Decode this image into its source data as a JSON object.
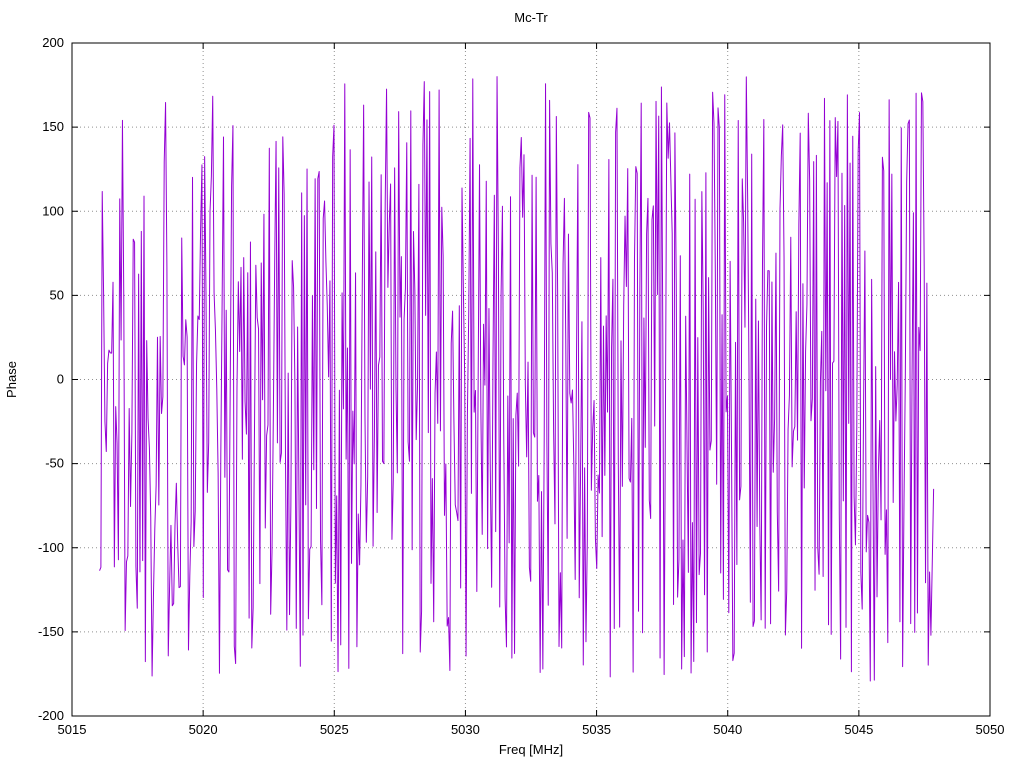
{
  "chart_data": {
    "type": "line",
    "title": "Mc-Tr",
    "xlabel": "Freq [MHz]",
    "ylabel": "Phase",
    "xlim": [
      5015,
      5050
    ],
    "ylim": [
      -200,
      200
    ],
    "x_ticks": [
      5015,
      5020,
      5025,
      5030,
      5035,
      5040,
      5045,
      5050
    ],
    "y_ticks": [
      -200,
      -150,
      -100,
      -50,
      0,
      50,
      100,
      150,
      200
    ],
    "grid": true,
    "grid_style": "dotted",
    "grid_color": "#909090",
    "border_color": "#000000",
    "background": "#ffffff",
    "legend_position": "none",
    "series": [
      {
        "name": "Mc-Tr",
        "color": "#9400d3",
        "description": "wrapped phase noise, uniformly distributed between -180 and 180 degrees",
        "x_start": 5016.05,
        "x_end": 5047.85,
        "n_points": 620,
        "y_min": -180,
        "y_max": 180,
        "seed": 1337
      }
    ]
  }
}
